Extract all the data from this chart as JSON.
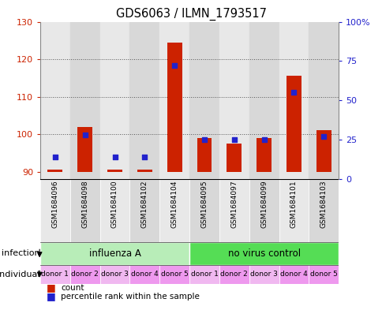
{
  "title": "GDS6063 / ILMN_1793517",
  "samples": [
    "GSM1684096",
    "GSM1684098",
    "GSM1684100",
    "GSM1684102",
    "GSM1684104",
    "GSM1684095",
    "GSM1684097",
    "GSM1684099",
    "GSM1684101",
    "GSM1684103"
  ],
  "count_values": [
    90.5,
    102.0,
    90.5,
    90.5,
    124.5,
    99.0,
    97.5,
    99.0,
    115.5,
    101.0
  ],
  "percentile_values": [
    14,
    28,
    14,
    14,
    72,
    25,
    25,
    25,
    55,
    27
  ],
  "infection_groups": [
    {
      "label": "influenza A",
      "span": [
        0,
        5
      ],
      "color": "#b8edb8"
    },
    {
      "label": "no virus control",
      "span": [
        5,
        10
      ],
      "color": "#55dd55"
    }
  ],
  "individual_labels": [
    "donor 1",
    "donor 2",
    "donor 3",
    "donor 4",
    "donor 5",
    "donor 1",
    "donor 2",
    "donor 3",
    "donor 4",
    "donor 5"
  ],
  "individual_colors": [
    "#f0b8f0",
    "#ee99ee",
    "#f0b8f0",
    "#ee99ee",
    "#ee99ee",
    "#f0b8f0",
    "#ee99ee",
    "#f0b8f0",
    "#ee99ee",
    "#ee99ee"
  ],
  "ylim_left": [
    88,
    130
  ],
  "ylim_right": [
    0,
    100
  ],
  "yticks_left": [
    90,
    100,
    110,
    120,
    130
  ],
  "yticks_right": [
    0,
    25,
    50,
    75,
    100
  ],
  "ybase": 90,
  "bar_color": "#cc2200",
  "dot_color": "#2222cc",
  "grid_color": "#555555",
  "sample_bg_odd": "#d8d8d8",
  "sample_bg_even": "#e8e8e8",
  "plot_bg": "#ffffff",
  "tick_fontsize": 8,
  "title_fontsize": 10.5,
  "sample_fontsize": 6.5,
  "infection_fontsize": 8.5,
  "individual_fontsize": 6.5,
  "legend_fontsize": 7.5
}
